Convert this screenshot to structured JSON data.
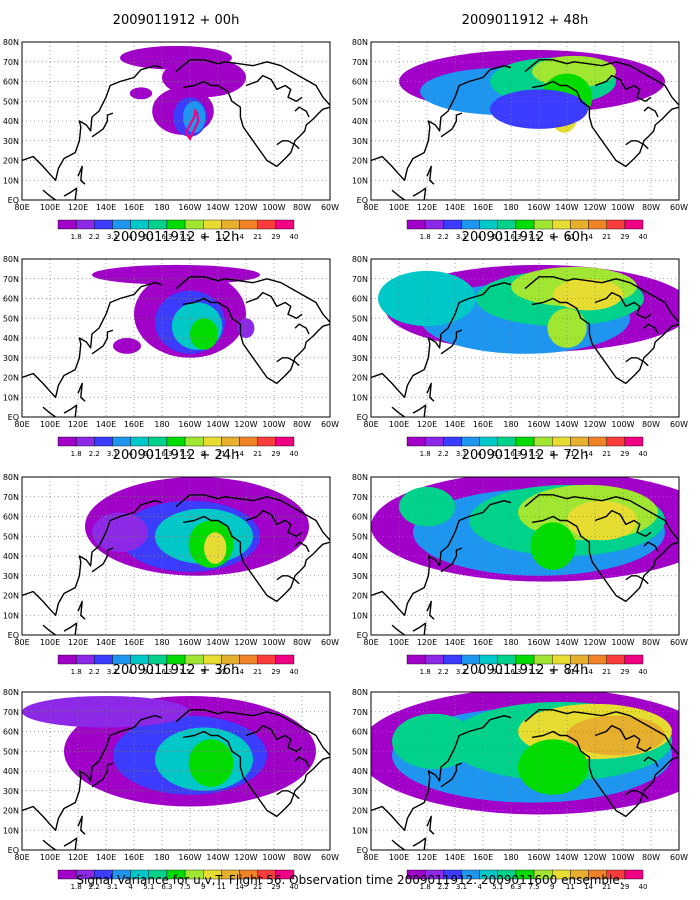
{
  "caption": "Signal Variance for u,v,T. Flight 56. Observation time 2009011912. 2009011600 ensemble.",
  "lat_labels": [
    "EQ",
    "10N",
    "20N",
    "30N",
    "40N",
    "50N",
    "60N",
    "70N",
    "80N"
  ],
  "lon_labels": [
    "80E",
    "100E",
    "120E",
    "140E",
    "160E",
    "180",
    "160W",
    "140W",
    "120W",
    "100W",
    "80W",
    "60W"
  ],
  "colorbar": {
    "labels": [
      "1.8",
      "2.2",
      "3.1",
      "4",
      "5.1",
      "6.3",
      "7.5",
      "9",
      "11",
      "14",
      "21",
      "29",
      "40"
    ],
    "colors": [
      "#a000c8",
      "#8c28e6",
      "#3c3cff",
      "#1e96f0",
      "#00c8c8",
      "#00d28c",
      "#00dc00",
      "#a0e632",
      "#e6dc32",
      "#e6af2d",
      "#f08228",
      "#fa3c3c",
      "#f00082"
    ]
  },
  "colors": {
    "land_outline": "#000000",
    "grid": "#808080",
    "flight_track": "#f00082"
  },
  "panels": [
    {
      "title": "2009011912 + 00h"
    },
    {
      "title": "2009011912 + 48h"
    },
    {
      "title": "2009011912 + 12h"
    },
    {
      "title": "2009011912 + 60h"
    },
    {
      "title": "2009011912 + 24h"
    },
    {
      "title": "2009011912 + 72h"
    },
    {
      "title": "2009011912 + 36h"
    },
    {
      "title": "2009011912 + 84h"
    }
  ]
}
